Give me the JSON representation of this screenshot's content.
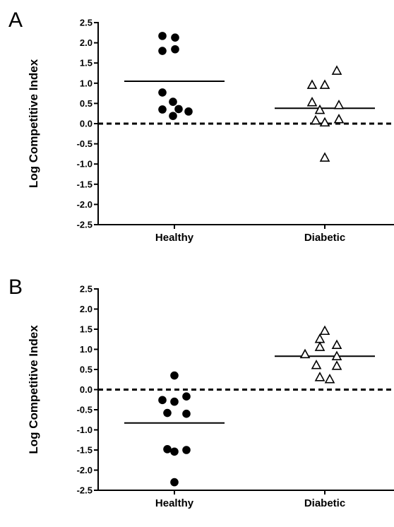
{
  "chart_data": [
    {
      "type": "scatter",
      "panel_label": "A",
      "title": "",
      "xlabel": "",
      "ylabel": "Log Competitive Index",
      "ylim": [
        -2.5,
        2.5
      ],
      "yticks": [
        "2.5",
        "2.0",
        "1.5",
        "1.0",
        "0.5",
        "0.0",
        "-0.5",
        "-1.0",
        "-1.5",
        "-2.0",
        "-2.5"
      ],
      "categories": [
        "Healthy",
        "Diabetic"
      ],
      "reference_line": 0.0,
      "series": [
        {
          "category": "Healthy",
          "marker": "filled-circle",
          "values": [
            2.17,
            2.13,
            1.8,
            1.84,
            0.77,
            0.54,
            0.35,
            0.19,
            0.3,
            0.36
          ],
          "mean": 1.05
        },
        {
          "category": "Diabetic",
          "marker": "open-triangle",
          "values": [
            1.3,
            0.95,
            0.95,
            0.52,
            0.45,
            0.33,
            0.1,
            0.07,
            0.02,
            -0.85
          ],
          "mean": 0.38
        }
      ]
    },
    {
      "type": "scatter",
      "panel_label": "B",
      "title": "",
      "xlabel": "",
      "ylabel": "Log Competitive Index",
      "ylim": [
        -2.5,
        2.5
      ],
      "yticks": [
        "2.5",
        "2.0",
        "1.5",
        "1.0",
        "0.5",
        "0.0",
        "-0.5",
        "-1.0",
        "-1.5",
        "-2.0",
        "-2.5"
      ],
      "categories": [
        "Healthy",
        "Diabetic"
      ],
      "reference_line": 0.0,
      "series": [
        {
          "category": "Healthy",
          "marker": "filled-circle",
          "values": [
            0.35,
            -0.17,
            -0.26,
            -0.3,
            -0.58,
            -0.6,
            -1.48,
            -1.5,
            -1.54,
            -2.3
          ],
          "mean": -0.83
        },
        {
          "category": "Diabetic",
          "marker": "open-triangle",
          "values": [
            1.45,
            1.25,
            1.1,
            1.05,
            0.87,
            0.82,
            0.6,
            0.58,
            0.3,
            0.25
          ],
          "mean": 0.83
        }
      ]
    }
  ]
}
